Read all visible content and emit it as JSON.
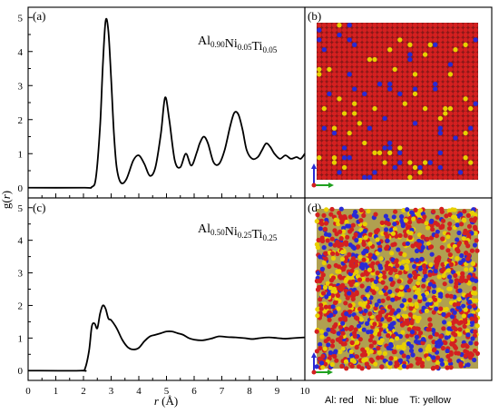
{
  "chart_data": [
    {
      "type": "line",
      "panel": "(a)",
      "composition": {
        "parts": [
          [
            "Al",
            "0.90"
          ],
          [
            "Ni",
            "0.05"
          ],
          [
            "Ti",
            "0.05"
          ]
        ]
      },
      "xlabel": "",
      "ylabel": "",
      "xlim": [
        0,
        10
      ],
      "ylim": [
        -0.3,
        5.3
      ],
      "yticks": [
        0,
        1,
        2,
        3,
        4,
        5
      ],
      "series": [
        {
          "x": [
            0,
            2.0,
            2.3,
            2.45,
            2.6,
            2.7,
            2.8,
            2.9,
            3.0,
            3.1,
            3.2,
            3.35,
            3.55,
            3.8,
            4.0,
            4.2,
            4.4,
            4.6,
            4.8,
            4.95,
            5.1,
            5.3,
            5.5,
            5.7,
            5.9,
            6.1,
            6.2,
            6.35,
            6.5,
            6.7,
            6.9,
            7.1,
            7.3,
            7.45,
            7.6,
            7.75,
            7.9,
            8.1,
            8.3,
            8.45,
            8.6,
            8.75,
            8.9,
            9.1,
            9.3,
            9.5,
            9.7,
            9.85,
            10
          ],
          "y": [
            0,
            0,
            0.02,
            0.3,
            1.8,
            3.6,
            4.9,
            4.6,
            3.2,
            1.6,
            0.6,
            0.15,
            0.25,
            0.8,
            0.95,
            0.7,
            0.35,
            0.6,
            1.6,
            2.65,
            2.0,
            0.8,
            0.6,
            1.0,
            0.65,
            1.05,
            1.3,
            1.5,
            1.3,
            0.75,
            0.7,
            1.1,
            1.8,
            2.2,
            2.15,
            1.7,
            1.1,
            0.85,
            0.9,
            1.1,
            1.3,
            1.2,
            1.0,
            0.85,
            0.95,
            0.85,
            0.9,
            0.85,
            1.0
          ]
        }
      ]
    },
    {
      "type": "line",
      "panel": "(c)",
      "composition": {
        "parts": [
          [
            "Al",
            "0.50"
          ],
          [
            "Ni",
            "0.25"
          ],
          [
            "Ti",
            "0.25"
          ]
        ]
      },
      "xlabel": "r (Å)",
      "ylabel": "g(r)",
      "xlim": [
        0,
        10
      ],
      "ylim": [
        -0.3,
        5.3
      ],
      "xticks": [
        0,
        1,
        2,
        3,
        4,
        5,
        6,
        7,
        8,
        9,
        10
      ],
      "yticks": [
        0,
        1,
        2,
        3,
        4,
        5
      ],
      "series": [
        {
          "x": [
            0,
            1.9,
            2.05,
            2.2,
            2.3,
            2.4,
            2.5,
            2.6,
            2.7,
            2.8,
            2.9,
            3.0,
            3.2,
            3.4,
            3.6,
            3.8,
            4.0,
            4.2,
            4.4,
            4.6,
            4.8,
            5.0,
            5.2,
            5.4,
            5.6,
            5.8,
            6.0,
            6.3,
            6.6,
            6.9,
            7.2,
            7.5,
            7.8,
            8.1,
            8.4,
            8.7,
            9.0,
            9.3,
            9.6,
            10
          ],
          "y": [
            0,
            0,
            0.05,
            0.6,
            1.35,
            1.45,
            1.3,
            1.75,
            2.0,
            1.9,
            1.6,
            1.55,
            1.3,
            0.95,
            0.72,
            0.65,
            0.7,
            0.9,
            1.05,
            1.1,
            1.15,
            1.2,
            1.2,
            1.15,
            1.1,
            1.0,
            0.95,
            0.93,
            0.98,
            1.05,
            1.03,
            1.02,
            1.0,
            0.97,
            1.0,
            1.02,
            1.0,
            0.98,
            1.0,
            1.02
          ]
        }
      ]
    }
  ],
  "snapshots": [
    {
      "panel": "(b)",
      "colors": {
        "Al": "#d42020",
        "Ni": "#2a2ad4",
        "Ti": "#e8d000"
      },
      "style": "ordered"
    },
    {
      "panel": "(d)",
      "colors": {
        "Al": "#d42020",
        "Ni": "#2a2ad4",
        "Ti": "#e8d000"
      },
      "style": "disordered"
    }
  ],
  "legend": {
    "text": "Al: red    Ni: blue    Ti: yellow"
  }
}
